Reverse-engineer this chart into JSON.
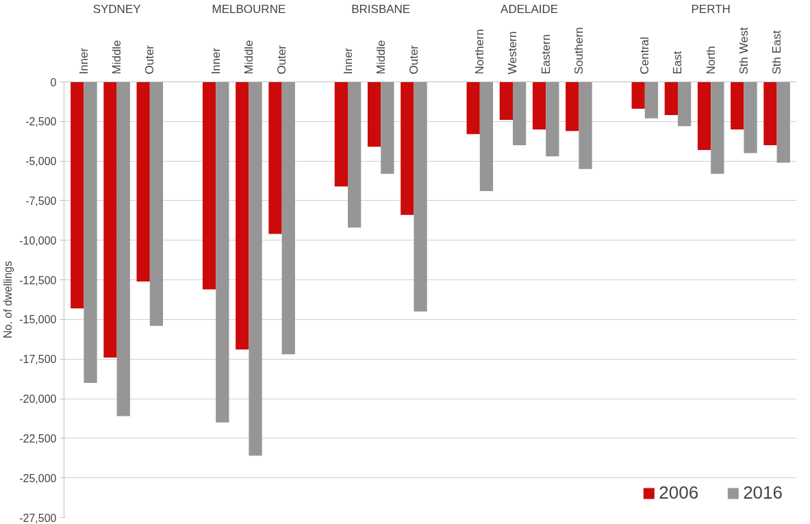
{
  "chart_data": {
    "type": "bar",
    "categories": [
      "Inner",
      "Middle",
      "Outer",
      null,
      "Inner",
      "Middle",
      "Outer",
      null,
      "Inner",
      "Middle",
      "Outer",
      null,
      "Northern",
      "Western",
      "Eastern",
      "Southern",
      null,
      "Central",
      "East",
      "North",
      "Sth West",
      "Sth East"
    ],
    "series": [
      {
        "name": "2006",
        "color": "#cc0a0a",
        "values": [
          -14300,
          -17400,
          -12600,
          null,
          -13100,
          -16900,
          -9600,
          null,
          -6600,
          -4100,
          -8400,
          null,
          -3300,
          -2400,
          -3000,
          -3100,
          null,
          -1700,
          -2100,
          -4300,
          -3000,
          -4000
        ]
      },
      {
        "name": "2016",
        "color": "#969696",
        "values": [
          -19000,
          -21100,
          -15400,
          null,
          -21500,
          -23600,
          -17200,
          null,
          -9200,
          -5800,
          -14500,
          null,
          -6900,
          -4000,
          -4700,
          -5500,
          null,
          -2300,
          -2800,
          -5800,
          -4500,
          -5100
        ]
      }
    ],
    "annotations": [
      "SYDNEY",
      "MELBOURNE",
      "BRISBANE",
      "ADELAIDE",
      "PERTH"
    ],
    "ylabel": "No. of dwellings",
    "ylim": [
      -27500,
      0
    ],
    "yticks": [
      {
        "value": -27500,
        "label": "-27,500"
      },
      {
        "value": -25000,
        "label": "-25,000"
      },
      {
        "value": -22500,
        "label": "-22,500"
      },
      {
        "value": -20000,
        "label": "-20,000"
      },
      {
        "value": -17500,
        "label": "-17,500"
      },
      {
        "value": -15000,
        "label": "-15,000"
      },
      {
        "value": -12500,
        "label": "-12,500"
      },
      {
        "value": -10000,
        "label": "-10,000"
      },
      {
        "value": -7500,
        "label": "-7,500"
      },
      {
        "value": -5000,
        "label": "-5,000"
      },
      {
        "value": -2500,
        "label": "-2,500"
      },
      0
    ],
    "grid": "y",
    "legend": "bottom right"
  }
}
